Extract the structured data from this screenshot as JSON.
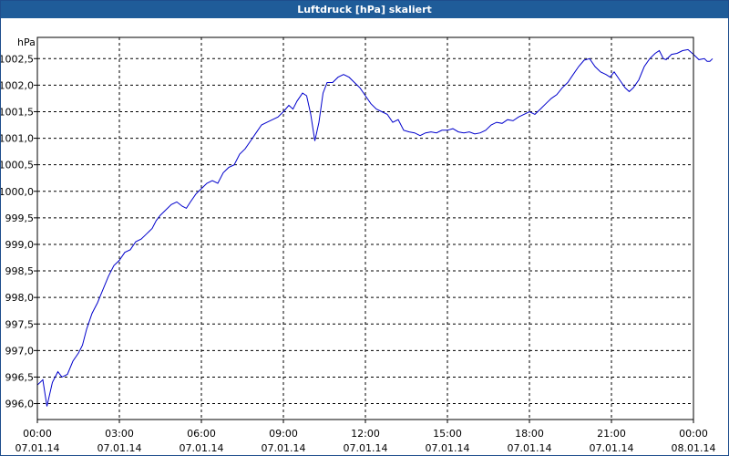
{
  "window": {
    "title": "Luftdruck [hPa] skaliert"
  },
  "colors": {
    "titlebar": "#1f5c99",
    "line": "#0000cc",
    "grid": "#000000",
    "axis": "#000000"
  },
  "chart_data": {
    "type": "line",
    "title": "Luftdruck [hPa] skaliert",
    "ylabel": "hPa",
    "ylim": [
      995.7,
      1002.9
    ],
    "grid": true,
    "legend": "none",
    "y_ticks": [
      {
        "v": 996.0,
        "label": "996,0"
      },
      {
        "v": 996.5,
        "label": "996,5"
      },
      {
        "v": 997.0,
        "label": "997,0"
      },
      {
        "v": 997.5,
        "label": "997,5"
      },
      {
        "v": 998.0,
        "label": "998,0"
      },
      {
        "v": 998.5,
        "label": "998,5"
      },
      {
        "v": 999.0,
        "label": "999,0"
      },
      {
        "v": 999.5,
        "label": "999,5"
      },
      {
        "v": 1000.0,
        "label": "1000,0"
      },
      {
        "v": 1000.5,
        "label": "1000,5"
      },
      {
        "v": 1001.0,
        "label": "1001,0"
      },
      {
        "v": 1001.5,
        "label": "1001,5"
      },
      {
        "v": 1002.0,
        "label": "1002,0"
      },
      {
        "v": 1002.5,
        "label": "1002,5"
      }
    ],
    "x_ticks": [
      {
        "h": 0,
        "time": "00:00",
        "date": "07.01.14"
      },
      {
        "h": 3,
        "time": "03:00",
        "date": "07.01.14"
      },
      {
        "h": 6,
        "time": "06:00",
        "date": "07.01.14"
      },
      {
        "h": 9,
        "time": "09:00",
        "date": "07.01.14"
      },
      {
        "h": 12,
        "time": "12:00",
        "date": "07.01.14"
      },
      {
        "h": 15,
        "time": "15:00",
        "date": "07.01.14"
      },
      {
        "h": 18,
        "time": "18:00",
        "date": "07.01.14"
      },
      {
        "h": 21,
        "time": "21:00",
        "date": "07.01.14"
      },
      {
        "h": 24,
        "time": "00:00",
        "date": "08.01.14"
      }
    ],
    "series": [
      {
        "values": [
          [
            0.0,
            996.35
          ],
          [
            0.2,
            996.45
          ],
          [
            0.35,
            995.95
          ],
          [
            0.55,
            996.4
          ],
          [
            0.75,
            996.6
          ],
          [
            0.9,
            996.5
          ],
          [
            1.1,
            996.55
          ],
          [
            1.3,
            996.8
          ],
          [
            1.5,
            996.95
          ],
          [
            1.65,
            997.1
          ],
          [
            1.8,
            997.4
          ],
          [
            2.0,
            997.7
          ],
          [
            2.2,
            997.9
          ],
          [
            2.4,
            998.15
          ],
          [
            2.6,
            998.4
          ],
          [
            2.8,
            998.6
          ],
          [
            3.0,
            998.7
          ],
          [
            3.2,
            998.85
          ],
          [
            3.4,
            998.9
          ],
          [
            3.6,
            999.05
          ],
          [
            3.8,
            999.1
          ],
          [
            4.0,
            999.2
          ],
          [
            4.2,
            999.3
          ],
          [
            4.35,
            999.45
          ],
          [
            4.5,
            999.55
          ],
          [
            4.7,
            999.65
          ],
          [
            4.9,
            999.75
          ],
          [
            5.1,
            999.8
          ],
          [
            5.3,
            999.72
          ],
          [
            5.45,
            999.68
          ],
          [
            5.6,
            999.8
          ],
          [
            5.8,
            999.95
          ],
          [
            6.0,
            1000.05
          ],
          [
            6.2,
            1000.15
          ],
          [
            6.4,
            1000.2
          ],
          [
            6.6,
            1000.15
          ],
          [
            6.8,
            1000.35
          ],
          [
            7.0,
            1000.45
          ],
          [
            7.2,
            1000.5
          ],
          [
            7.4,
            1000.7
          ],
          [
            7.6,
            1000.8
          ],
          [
            7.8,
            1000.95
          ],
          [
            8.0,
            1001.1
          ],
          [
            8.2,
            1001.25
          ],
          [
            8.4,
            1001.3
          ],
          [
            8.6,
            1001.35
          ],
          [
            8.8,
            1001.4
          ],
          [
            9.0,
            1001.5
          ],
          [
            9.2,
            1001.62
          ],
          [
            9.35,
            1001.55
          ],
          [
            9.5,
            1001.7
          ],
          [
            9.7,
            1001.85
          ],
          [
            9.85,
            1001.8
          ],
          [
            10.0,
            1001.45
          ],
          [
            10.15,
            1000.95
          ],
          [
            10.3,
            1001.3
          ],
          [
            10.45,
            1001.85
          ],
          [
            10.6,
            1002.05
          ],
          [
            10.8,
            1002.05
          ],
          [
            11.0,
            1002.15
          ],
          [
            11.2,
            1002.2
          ],
          [
            11.4,
            1002.15
          ],
          [
            11.6,
            1002.05
          ],
          [
            11.8,
            1001.95
          ],
          [
            12.0,
            1001.8
          ],
          [
            12.2,
            1001.65
          ],
          [
            12.4,
            1001.55
          ],
          [
            12.6,
            1001.5
          ],
          [
            12.8,
            1001.45
          ],
          [
            13.0,
            1001.3
          ],
          [
            13.2,
            1001.35
          ],
          [
            13.4,
            1001.15
          ],
          [
            13.6,
            1001.12
          ],
          [
            13.8,
            1001.1
          ],
          [
            14.0,
            1001.05
          ],
          [
            14.2,
            1001.1
          ],
          [
            14.4,
            1001.12
          ],
          [
            14.6,
            1001.1
          ],
          [
            14.8,
            1001.15
          ],
          [
            15.0,
            1001.15
          ],
          [
            15.2,
            1001.18
          ],
          [
            15.4,
            1001.12
          ],
          [
            15.6,
            1001.1
          ],
          [
            15.8,
            1001.12
          ],
          [
            16.0,
            1001.08
          ],
          [
            16.2,
            1001.1
          ],
          [
            16.4,
            1001.15
          ],
          [
            16.6,
            1001.25
          ],
          [
            16.8,
            1001.3
          ],
          [
            17.0,
            1001.28
          ],
          [
            17.2,
            1001.35
          ],
          [
            17.4,
            1001.33
          ],
          [
            17.6,
            1001.4
          ],
          [
            17.8,
            1001.45
          ],
          [
            18.0,
            1001.5
          ],
          [
            18.2,
            1001.45
          ],
          [
            18.4,
            1001.55
          ],
          [
            18.6,
            1001.65
          ],
          [
            18.8,
            1001.75
          ],
          [
            19.0,
            1001.82
          ],
          [
            19.2,
            1001.95
          ],
          [
            19.4,
            1002.05
          ],
          [
            19.6,
            1002.2
          ],
          [
            19.8,
            1002.35
          ],
          [
            20.0,
            1002.47
          ],
          [
            20.2,
            1002.5
          ],
          [
            20.4,
            1002.35
          ],
          [
            20.6,
            1002.25
          ],
          [
            20.8,
            1002.2
          ],
          [
            20.95,
            1002.15
          ],
          [
            21.1,
            1002.25
          ],
          [
            21.3,
            1002.1
          ],
          [
            21.5,
            1001.95
          ],
          [
            21.65,
            1001.88
          ],
          [
            21.8,
            1001.95
          ],
          [
            22.0,
            1002.1
          ],
          [
            22.2,
            1002.35
          ],
          [
            22.4,
            1002.5
          ],
          [
            22.6,
            1002.6
          ],
          [
            22.75,
            1002.65
          ],
          [
            22.9,
            1002.5
          ],
          [
            23.0,
            1002.48
          ],
          [
            23.2,
            1002.58
          ],
          [
            23.4,
            1002.6
          ],
          [
            23.6,
            1002.65
          ],
          [
            23.8,
            1002.67
          ],
          [
            24.0,
            1002.58
          ],
          [
            24.2,
            1002.48
          ],
          [
            24.4,
            1002.5
          ],
          [
            24.5,
            1002.45
          ],
          [
            24.6,
            1002.45
          ],
          [
            24.7,
            1002.5
          ]
        ]
      }
    ]
  }
}
